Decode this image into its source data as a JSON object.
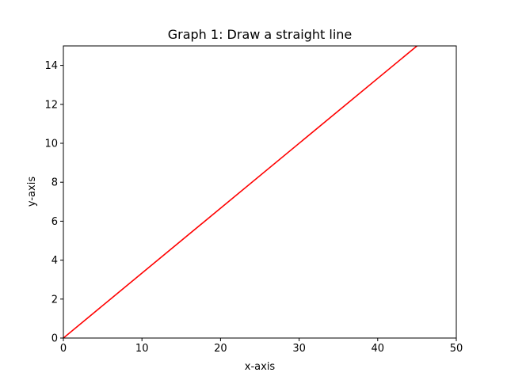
{
  "chart_data": {
    "type": "line",
    "title": "Graph 1: Draw a straight line",
    "xlabel": "x-axis",
    "ylabel": "y-axis",
    "xlim": [
      0,
      50
    ],
    "ylim": [
      0,
      15
    ],
    "xticks": [
      0,
      10,
      20,
      30,
      40,
      50
    ],
    "yticks": [
      0,
      2,
      4,
      6,
      8,
      10,
      12,
      14
    ],
    "grid": false,
    "series": [
      {
        "color": "#ff0000",
        "x": [
          0,
          45
        ],
        "y": [
          0,
          15
        ]
      }
    ]
  }
}
